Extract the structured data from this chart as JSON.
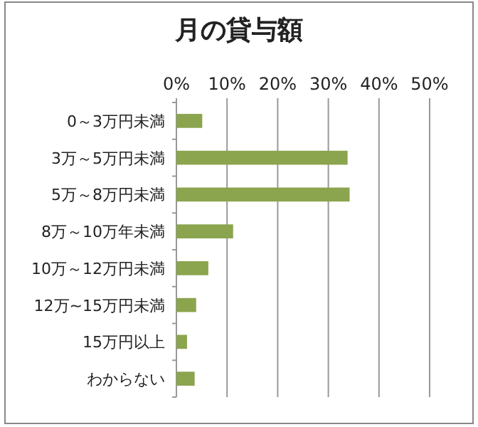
{
  "chart_data": {
    "type": "bar",
    "title": "月の貸与額",
    "orientation": "horizontal",
    "categories": [
      "0～3万円未満",
      "3万～5万円未満",
      "5万～8万円未満",
      "8万～10万年未満",
      "10万～12万円未満",
      "12万~15万円未満",
      "15万円以上",
      "わからない"
    ],
    "values": [
      5.1,
      33.8,
      34.2,
      11.2,
      6.3,
      3.9,
      2.1,
      3.6
    ],
    "color": "#8ba44e",
    "xlim": [
      0,
      50
    ],
    "xticks": [
      {
        "value": 0,
        "label": "0%"
      },
      {
        "value": 10,
        "label": "10%"
      },
      {
        "value": 20,
        "label": "20%"
      },
      {
        "value": 30,
        "label": "30%"
      },
      {
        "value": 40,
        "label": "40%"
      },
      {
        "value": 50,
        "label": "50%"
      }
    ],
    "grid": "x"
  }
}
